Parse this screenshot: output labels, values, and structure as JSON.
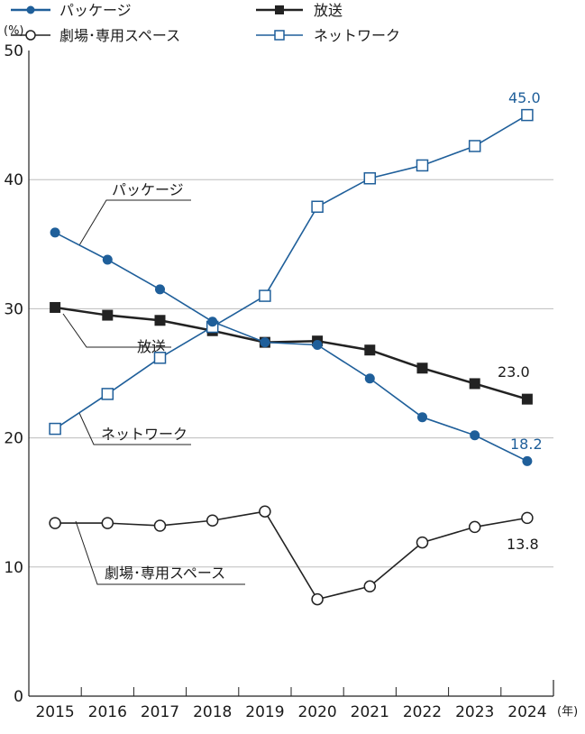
{
  "chart_data": {
    "type": "line",
    "categories": [
      "2015",
      "2016",
      "2017",
      "2018",
      "2019",
      "2020",
      "2021",
      "2022",
      "2023",
      "2024"
    ],
    "ylim": [
      0,
      50
    ],
    "yticks": [
      "0",
      "10",
      "20",
      "30",
      "40",
      "50"
    ],
    "y_unit": "(%)",
    "x_unit": "(年)",
    "grid": true,
    "series": [
      {
        "name": "パッケージ",
        "label": "パッケージ",
        "color": "#1f5f9a",
        "marker": "filled-circle",
        "values": [
          35.9,
          33.8,
          31.5,
          29.0,
          27.4,
          27.2,
          24.6,
          21.6,
          20.2,
          18.2
        ]
      },
      {
        "name": "放送",
        "label": "放送",
        "color": "#222222",
        "marker": "filled-square",
        "values": [
          30.1,
          29.5,
          29.1,
          28.3,
          27.4,
          27.5,
          26.8,
          25.4,
          24.2,
          23.0
        ]
      },
      {
        "name": "劇場・専用スペース",
        "label": "劇場･専用スペース",
        "color": "#222222",
        "marker": "open-circle",
        "values": [
          13.4,
          13.4,
          13.2,
          13.6,
          14.3,
          7.5,
          8.5,
          11.9,
          13.1,
          13.8
        ]
      },
      {
        "name": "ネットワーク",
        "label": "ネットワーク",
        "color": "#1f5f9a",
        "marker": "open-square",
        "values": [
          20.7,
          23.4,
          26.2,
          28.6,
          31.0,
          37.9,
          40.1,
          41.1,
          42.6,
          45.0
        ]
      }
    ],
    "end_labels": {
      "ネットワーク": "45.0",
      "放送": "23.0",
      "パッケージ": "18.2",
      "劇場・専用スペース": "13.8"
    },
    "legend": {
      "placement": "top"
    }
  }
}
